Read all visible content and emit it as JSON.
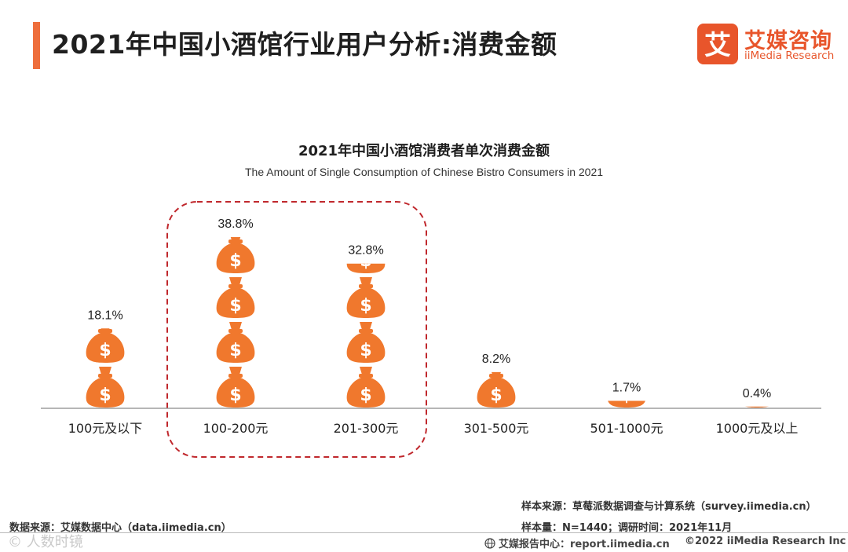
{
  "header": {
    "title": "2021年中国小酒馆行业用户分析:消费金额"
  },
  "logo": {
    "mark_char": "艾",
    "name_cn": "艾媒咨询",
    "name_en": "iiMedia Research"
  },
  "chart_data": {
    "type": "bar",
    "title": "2021年中国小酒馆消费者单次消费金额",
    "subtitle": "The Amount of Single Consumption of Chinese Bistro Consumers in 2021",
    "categories": [
      "100元及以下",
      "100-200元",
      "201-300元",
      "301-500元",
      "501-1000元",
      "1000元及以上"
    ],
    "values": [
      18.1,
      38.8,
      32.8,
      8.2,
      1.7,
      0.4
    ],
    "value_labels": [
      "18.1%",
      "38.8%",
      "32.8%",
      "8.2%",
      "1.7%",
      "0.4%"
    ],
    "unit": "%",
    "highlighted_categories": [
      "100-200元",
      "201-300元"
    ],
    "mark": "money-bag-icon",
    "ylim": [
      0,
      40
    ]
  },
  "notes": {
    "sample_source": "样本来源：草莓派数据调查与计算系统（survey.iimedia.cn）",
    "sample_size": "样本量：N=1440；调研时间：2021年11月",
    "data_source": "数据来源：艾媒数据中心（data.iimedia.cn）"
  },
  "footer": {
    "report_center": "艾媒报告中心：report.iimedia.cn",
    "copyright": "©2022  iiMedia Research  Inc",
    "watermark": "© 人数时镜"
  },
  "colors": {
    "accent": "#ee6e3c",
    "bag": "#f0782d",
    "highlight_border": "#c0282d",
    "brand": "#e8552b"
  }
}
